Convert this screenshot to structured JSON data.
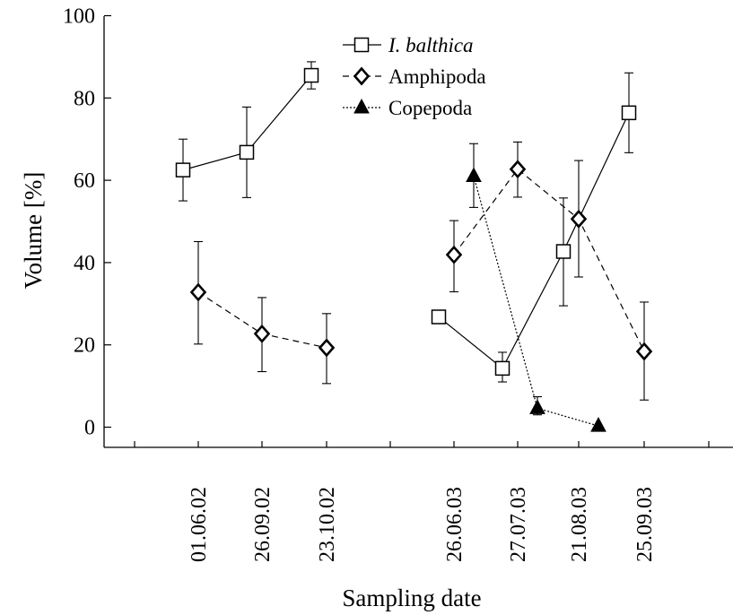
{
  "chart_data": {
    "type": "line",
    "xlabel": "Sampling date",
    "ylabel": "Volume [%]",
    "ylim": [
      0,
      100
    ],
    "yticks": [
      0,
      20,
      40,
      60,
      80,
      100
    ],
    "categories": [
      "01.06.02",
      "26.09.02",
      "23.10.02",
      "26.06.03",
      "27.07.03",
      "21.08.03",
      "25.09.03"
    ],
    "legend_position": "top-center",
    "series": [
      {
        "name": "I. balthica",
        "marker": "square",
        "line_style": "solid",
        "name_style": "italic",
        "segments": [
          [
            {
              "x": "01.06.02",
              "y": 62.5,
              "err_low": 7.5,
              "err_high": 7.5
            },
            {
              "x": "26.09.02",
              "y": 66.8,
              "err_low": 11.0,
              "err_high": 11.0
            },
            {
              "x": "23.10.02",
              "y": 85.5,
              "err_low": 3.3,
              "err_high": 3.3
            }
          ],
          [
            {
              "x": "26.06.03",
              "y": 26.8,
              "err_low": 0,
              "err_high": 0
            },
            {
              "x": "27.07.03",
              "y": 14.3,
              "err_low": 3.3,
              "err_high": 3.9
            },
            {
              "x": "21.08.03",
              "y": 42.7,
              "err_low": 13.2,
              "err_high": 13.0
            },
            {
              "x": "25.09.03",
              "y": 76.4,
              "err_low": 9.7,
              "err_high": 9.7
            }
          ]
        ]
      },
      {
        "name": "Amphipoda",
        "marker": "diamond",
        "line_style": "dashed",
        "segments": [
          [
            {
              "x": "01.06.02",
              "y": 32.8,
              "err_low": 12.6,
              "err_high": 12.3
            },
            {
              "x": "26.09.02",
              "y": 22.7,
              "err_low": 9.2,
              "err_high": 8.8
            },
            {
              "x": "23.10.02",
              "y": 19.3,
              "err_low": 8.7,
              "err_high": 8.3
            }
          ],
          [
            {
              "x": "26.06.03",
              "y": 41.9,
              "err_low": 9.0,
              "err_high": 8.3
            },
            {
              "x": "27.07.03",
              "y": 62.7,
              "err_low": 6.8,
              "err_high": 6.6
            },
            {
              "x": "21.08.03",
              "y": 50.6,
              "err_low": 14.1,
              "err_high": 14.2
            },
            {
              "x": "25.09.03",
              "y": 18.4,
              "err_low": 11.8,
              "err_high": 12.0
            }
          ]
        ]
      },
      {
        "name": "Copepoda",
        "marker": "triangle-filled",
        "line_style": "dotted",
        "segments": [
          [
            {
              "x": "26.06.03",
              "y": 61.0,
              "err_low": 7.6,
              "err_high": 7.9
            },
            {
              "x": "27.07.03",
              "y": 4.6,
              "err_low": 1.6,
              "err_high": 2.8
            },
            {
              "x": "21.08.03",
              "y": 0.3,
              "err_low": 0,
              "err_high": 0
            }
          ]
        ]
      }
    ]
  }
}
